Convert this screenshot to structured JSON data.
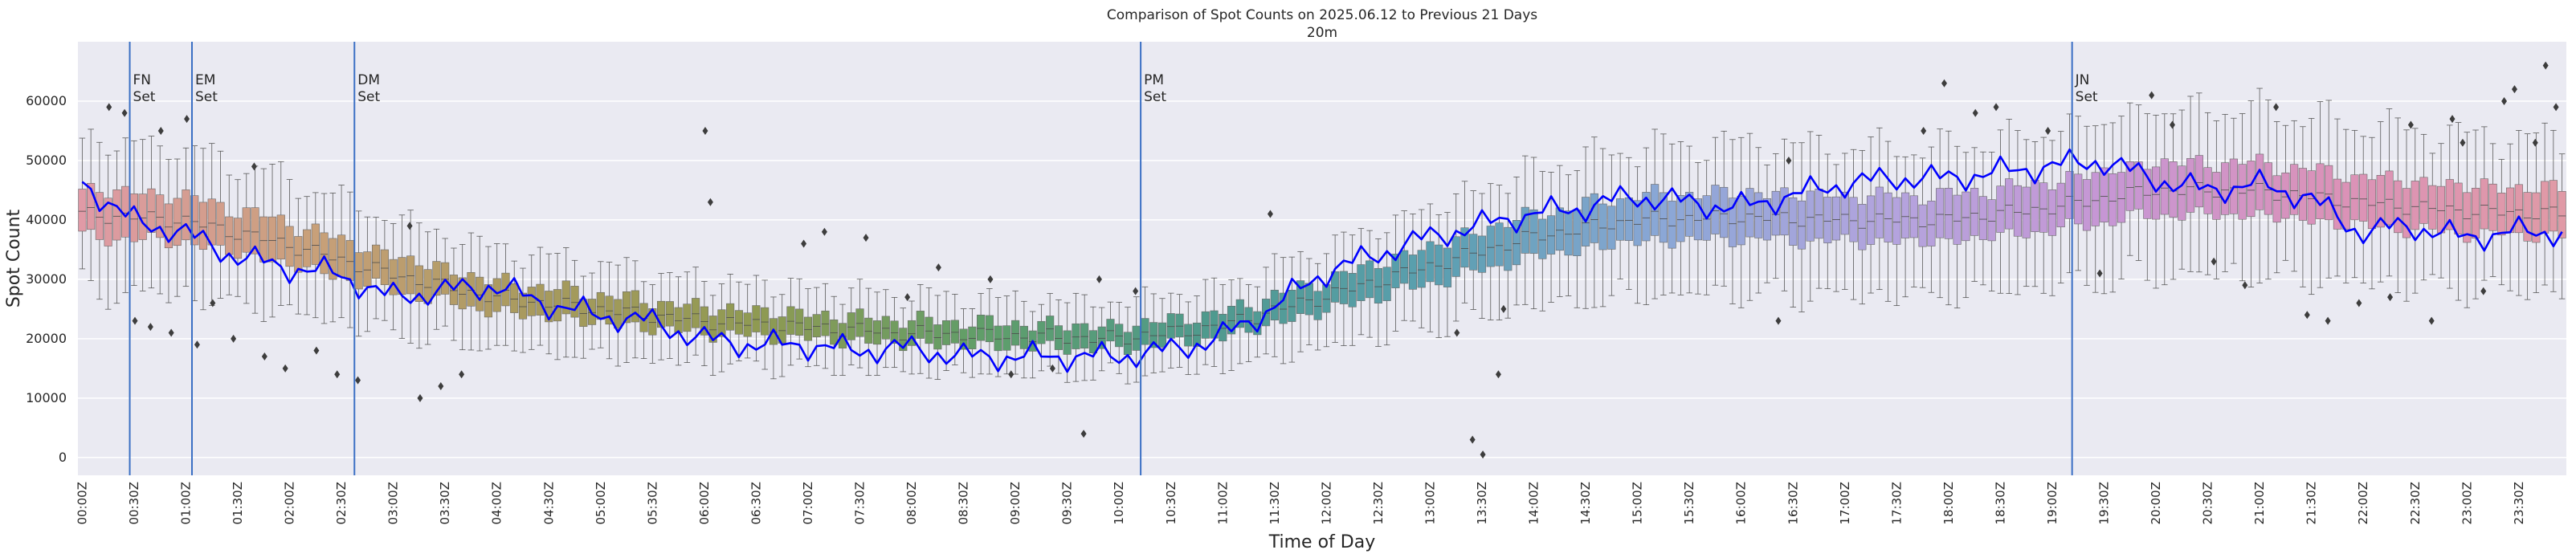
{
  "chart_data": {
    "type": "box",
    "title": "Comparison of Spot Counts on 2025.06.12 to Previous 21 Days",
    "subtitle": "20m",
    "xlabel": "Time of Day",
    "ylabel": "Spot Count",
    "ylim": [
      -3000,
      70000
    ],
    "yticks": [
      0,
      10000,
      20000,
      30000,
      40000,
      50000,
      60000
    ],
    "grid": true,
    "bins_per_day": 288,
    "bin_minutes": 5,
    "xtick_labels": [
      "00:00Z",
      "00:30Z",
      "01:00Z",
      "01:30Z",
      "02:00Z",
      "02:30Z",
      "03:00Z",
      "03:30Z",
      "04:00Z",
      "04:30Z",
      "05:00Z",
      "05:30Z",
      "06:00Z",
      "06:30Z",
      "07:00Z",
      "07:30Z",
      "08:00Z",
      "08:30Z",
      "09:00Z",
      "09:30Z",
      "10:00Z",
      "10:30Z",
      "11:00Z",
      "11:30Z",
      "12:00Z",
      "12:30Z",
      "13:00Z",
      "13:30Z",
      "14:00Z",
      "14:30Z",
      "15:00Z",
      "15:30Z",
      "16:00Z",
      "16:30Z",
      "17:00Z",
      "17:30Z",
      "18:00Z",
      "18:30Z",
      "19:00Z",
      "19:30Z",
      "20:00Z",
      "20:30Z",
      "21:00Z",
      "21:30Z",
      "22:00Z",
      "22:30Z",
      "23:00Z",
      "23:30Z"
    ],
    "median_profile": {
      "hours": [
        0,
        1,
        2,
        3,
        4,
        5,
        6,
        7,
        8,
        9,
        10,
        11,
        12,
        13,
        14,
        15,
        16,
        17,
        18,
        19,
        20,
        21,
        22,
        23,
        24
      ],
      "values": [
        41000,
        40000,
        36000,
        31000,
        27000,
        25000,
        23000,
        22000,
        21000,
        20500,
        20000,
        22000,
        27000,
        32000,
        37000,
        40000,
        40500,
        40000,
        40000,
        42000,
        45000,
        45000,
        43000,
        41500,
        41000
      ]
    },
    "today_series": {
      "name": "2025.06.12",
      "color": "#0000ff",
      "hours": [
        0,
        0.5,
        1,
        1.5,
        2,
        2.5,
        3,
        3.5,
        4,
        4.5,
        5,
        5.5,
        6,
        6.5,
        7,
        7.5,
        8,
        8.5,
        9,
        9.5,
        10,
        10.5,
        11,
        11.5,
        12,
        12.5,
        13,
        13.5,
        14,
        14.5,
        15,
        15.5,
        16,
        16.5,
        17,
        17.5,
        18,
        18.5,
        19,
        19.5,
        20,
        20.5,
        21,
        21.5,
        22,
        22.5,
        23,
        23.5,
        24
      ],
      "values": [
        47000,
        40000,
        38000,
        34000,
        32000,
        31000,
        27000,
        28000,
        29000,
        26000,
        24000,
        23000,
        20000,
        19000,
        19000,
        18000,
        18500,
        17000,
        17000,
        17000,
        17000,
        18000,
        20000,
        25000,
        31000,
        34000,
        37000,
        39000,
        41000,
        42000,
        44000,
        43000,
        42000,
        44000,
        46000,
        47000,
        47000,
        48000,
        49000,
        50000,
        47000,
        45000,
        46000,
        44000,
        38000,
        39000,
        37000,
        38000,
        38000
      ]
    },
    "box_colors": [
      "#e09aa6",
      "#c9a07a",
      "#a89a5e",
      "#8f9a52",
      "#5f9e69",
      "#4f9a8e",
      "#5a9fb0",
      "#8aa7d6",
      "#b3a4de",
      "#c796d4",
      "#db92b8",
      "#e09aa6"
    ],
    "outlier_samples": [
      {
        "h": 0.3,
        "v": 59000
      },
      {
        "h": 0.45,
        "v": 58000
      },
      {
        "h": 0.55,
        "v": 23000
      },
      {
        "h": 0.7,
        "v": 22000
      },
      {
        "h": 0.8,
        "v": 55000
      },
      {
        "h": 0.9,
        "v": 21000
      },
      {
        "h": 1.05,
        "v": 57000
      },
      {
        "h": 1.15,
        "v": 19000
      },
      {
        "h": 1.3,
        "v": 26000
      },
      {
        "h": 1.5,
        "v": 20000
      },
      {
        "h": 1.7,
        "v": 49000
      },
      {
        "h": 1.8,
        "v": 17000
      },
      {
        "h": 2.0,
        "v": 15000
      },
      {
        "h": 2.3,
        "v": 18000
      },
      {
        "h": 2.5,
        "v": 14000
      },
      {
        "h": 2.7,
        "v": 13000
      },
      {
        "h": 3.2,
        "v": 39000
      },
      {
        "h": 3.3,
        "v": 10000
      },
      {
        "h": 3.5,
        "v": 12000
      },
      {
        "h": 3.7,
        "v": 14000
      },
      {
        "h": 6.05,
        "v": 55000
      },
      {
        "h": 6.1,
        "v": 43000
      },
      {
        "h": 7.0,
        "v": 36000
      },
      {
        "h": 7.2,
        "v": 38000
      },
      {
        "h": 7.6,
        "v": 37000
      },
      {
        "h": 8.0,
        "v": 27000
      },
      {
        "h": 8.3,
        "v": 32000
      },
      {
        "h": 8.8,
        "v": 30000
      },
      {
        "h": 9.0,
        "v": 14000
      },
      {
        "h": 9.4,
        "v": 15000
      },
      {
        "h": 9.7,
        "v": 4000
      },
      {
        "h": 9.85,
        "v": 30000
      },
      {
        "h": 10.2,
        "v": 28000
      },
      {
        "h": 11.5,
        "v": 41000
      },
      {
        "h": 13.3,
        "v": 21000
      },
      {
        "h": 13.45,
        "v": 3000
      },
      {
        "h": 13.55,
        "v": 500
      },
      {
        "h": 13.7,
        "v": 14000
      },
      {
        "h": 13.75,
        "v": 25000
      },
      {
        "h": 16.4,
        "v": 23000
      },
      {
        "h": 16.5,
        "v": 50000
      },
      {
        "h": 17.8,
        "v": 55000
      },
      {
        "h": 18.0,
        "v": 63000
      },
      {
        "h": 18.3,
        "v": 58000
      },
      {
        "h": 18.5,
        "v": 59000
      },
      {
        "h": 19.0,
        "v": 55000
      },
      {
        "h": 19.5,
        "v": 31000
      },
      {
        "h": 20.0,
        "v": 61000
      },
      {
        "h": 20.2,
        "v": 56000
      },
      {
        "h": 20.6,
        "v": 33000
      },
      {
        "h": 20.9,
        "v": 29000
      },
      {
        "h": 21.2,
        "v": 59000
      },
      {
        "h": 21.5,
        "v": 24000
      },
      {
        "h": 21.7,
        "v": 23000
      },
      {
        "h": 22.0,
        "v": 26000
      },
      {
        "h": 22.3,
        "v": 27000
      },
      {
        "h": 22.5,
        "v": 56000
      },
      {
        "h": 22.7,
        "v": 23000
      },
      {
        "h": 22.9,
        "v": 57000
      },
      {
        "h": 23.0,
        "v": 53000
      },
      {
        "h": 23.2,
        "v": 28000
      },
      {
        "h": 23.4,
        "v": 60000
      },
      {
        "h": 23.5,
        "v": 62000
      },
      {
        "h": 23.7,
        "v": 53000
      },
      {
        "h": 23.8,
        "v": 66000
      },
      {
        "h": 23.9,
        "v": 59000
      }
    ],
    "annotations": [
      {
        "time_hours": 0.5,
        "line1": "FN",
        "line2": "Set",
        "color": "#3a6fc4"
      },
      {
        "time_hours": 1.1,
        "line1": "EM",
        "line2": "Set",
        "color": "#3a6fc4"
      },
      {
        "time_hours": 2.667,
        "line1": "DM",
        "line2": "Set",
        "color": "#3a6fc4"
      },
      {
        "time_hours": 10.25,
        "line1": "PM",
        "line2": "Set",
        "color": "#3a6fc4"
      },
      {
        "time_hours": 19.233,
        "line1": "JN",
        "line2": "Set",
        "color": "#3a6fc4"
      }
    ]
  }
}
